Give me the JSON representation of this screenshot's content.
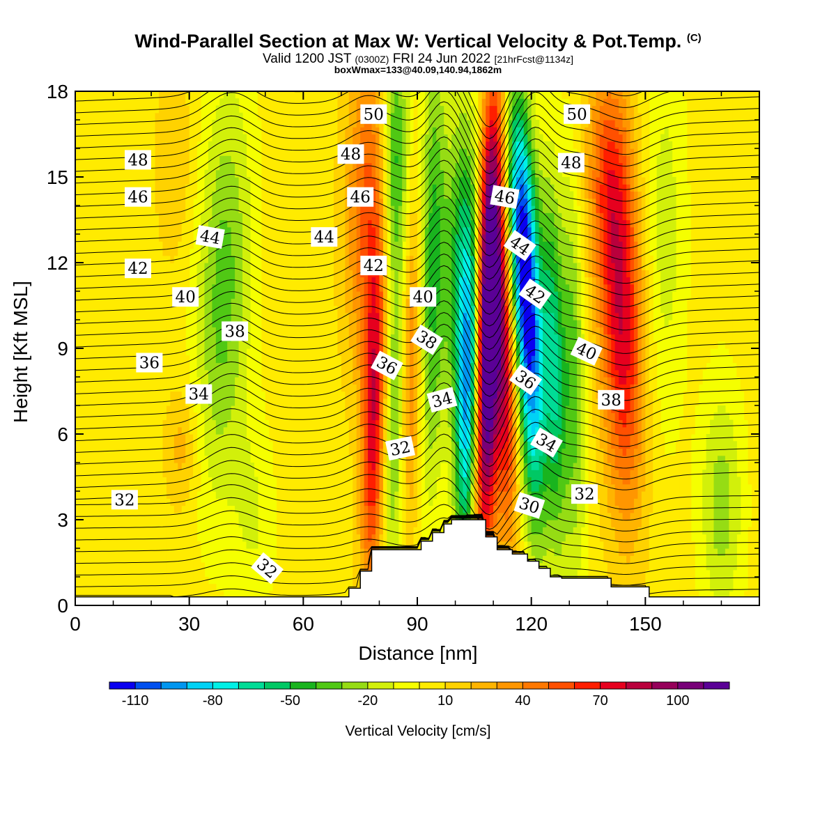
{
  "title": {
    "main": "Wind-Parallel Section at Max W: Vertical Velocity & Pot.Temp.",
    "copyright": "(C)"
  },
  "subtitle": {
    "valid": "Valid 1200 JST",
    "utc": "(0300Z)",
    "date": "FRI 24 Jun 2022",
    "forecast": "[21hrFcst@1134z]"
  },
  "box_note": "boxWmax=133@40.09,140.94,1862m",
  "chart_data": {
    "type": "heatmap",
    "xlabel": "Distance [nm]",
    "ylabel": "Height [Kft MSL]",
    "xlim": [
      0,
      180
    ],
    "ylim": [
      0,
      18
    ],
    "xticks": [
      0,
      30,
      60,
      90,
      120,
      150
    ],
    "yticks": [
      0,
      3,
      6,
      9,
      12,
      15,
      18
    ],
    "colorbar": {
      "label": "Vertical Velocity [cm/s]",
      "range": [
        -120,
        120
      ],
      "step": 10,
      "tick_labels": [
        "-110",
        "-80",
        "-50",
        "-20",
        "10",
        "40",
        "70",
        "100"
      ],
      "tick_values": [
        -110,
        -80,
        -50,
        -20,
        10,
        40,
        70,
        100
      ],
      "colors": [
        "#0a00f0",
        "#0050f0",
        "#0096f0",
        "#00d2f5",
        "#00f0e6",
        "#00dc96",
        "#00c864",
        "#19b41e",
        "#50c814",
        "#96dc14",
        "#d2f00a",
        "#f5ff00",
        "#ffeb00",
        "#ffd200",
        "#ffb400",
        "#ff9600",
        "#ff7800",
        "#ff5000",
        "#ff1e00",
        "#e6001e",
        "#b9003c",
        "#96005a",
        "#780078",
        "#5a0096"
      ]
    },
    "vertical_velocity_features": [
      {
        "x": 108.5,
        "y": 9,
        "w_cm_s": 133,
        "sign": "updraft"
      },
      {
        "x": 103.5,
        "y": 8,
        "w_cm_s": -110,
        "sign": "downdraft"
      },
      {
        "x": 120,
        "y": 9,
        "w_cm_s": -100,
        "sign": "downdraft"
      },
      {
        "x": 144,
        "y": 9.5,
        "w_cm_s": 70,
        "sign": "updraft"
      },
      {
        "x": 78.5,
        "y": 6.5,
        "w_cm_s": 70,
        "sign": "updraft"
      },
      {
        "x": 39,
        "y": 11,
        "w_cm_s": -40,
        "sign": "downdraft"
      },
      {
        "x": 94,
        "y": 12,
        "w_cm_s": -50,
        "sign": "downdraft"
      }
    ],
    "theta_contour_labels": [
      {
        "x": 16.5,
        "y": 15.6,
        "text": "48"
      },
      {
        "x": 16.5,
        "y": 14.3,
        "text": "46"
      },
      {
        "x": 35.5,
        "y": 12.9,
        "text": "44"
      },
      {
        "x": 16.5,
        "y": 11.8,
        "text": "42"
      },
      {
        "x": 29,
        "y": 10.8,
        "text": "40"
      },
      {
        "x": 42,
        "y": 9.6,
        "text": "38"
      },
      {
        "x": 19.5,
        "y": 8.5,
        "text": "36"
      },
      {
        "x": 32.5,
        "y": 7.4,
        "text": "34"
      },
      {
        "x": 13,
        "y": 3.7,
        "text": "32"
      },
      {
        "x": 50.5,
        "y": 1.3,
        "text": "32"
      },
      {
        "x": 78.5,
        "y": 17.2,
        "text": "50"
      },
      {
        "x": 72.5,
        "y": 15.8,
        "text": "48"
      },
      {
        "x": 75,
        "y": 14.3,
        "text": "46"
      },
      {
        "x": 65.5,
        "y": 12.9,
        "text": "44"
      },
      {
        "x": 78.5,
        "y": 11.9,
        "text": "42"
      },
      {
        "x": 91.5,
        "y": 10.8,
        "text": "40"
      },
      {
        "x": 92.5,
        "y": 9.3,
        "text": "38"
      },
      {
        "x": 82,
        "y": 8.4,
        "text": "36"
      },
      {
        "x": 96.5,
        "y": 7.2,
        "text": "34"
      },
      {
        "x": 85.5,
        "y": 5.5,
        "text": "32"
      },
      {
        "x": 132,
        "y": 17.2,
        "text": "50"
      },
      {
        "x": 130.5,
        "y": 15.5,
        "text": "48"
      },
      {
        "x": 113,
        "y": 14.3,
        "text": "46"
      },
      {
        "x": 117,
        "y": 12.6,
        "text": "44"
      },
      {
        "x": 121,
        "y": 10.9,
        "text": "42"
      },
      {
        "x": 134.5,
        "y": 8.9,
        "text": "40"
      },
      {
        "x": 118.5,
        "y": 7.9,
        "text": "36"
      },
      {
        "x": 141,
        "y": 7.2,
        "text": "38"
      },
      {
        "x": 124,
        "y": 5.7,
        "text": "34"
      },
      {
        "x": 134,
        "y": 3.9,
        "text": "32"
      },
      {
        "x": 119.5,
        "y": 3.5,
        "text": "30"
      }
    ]
  }
}
